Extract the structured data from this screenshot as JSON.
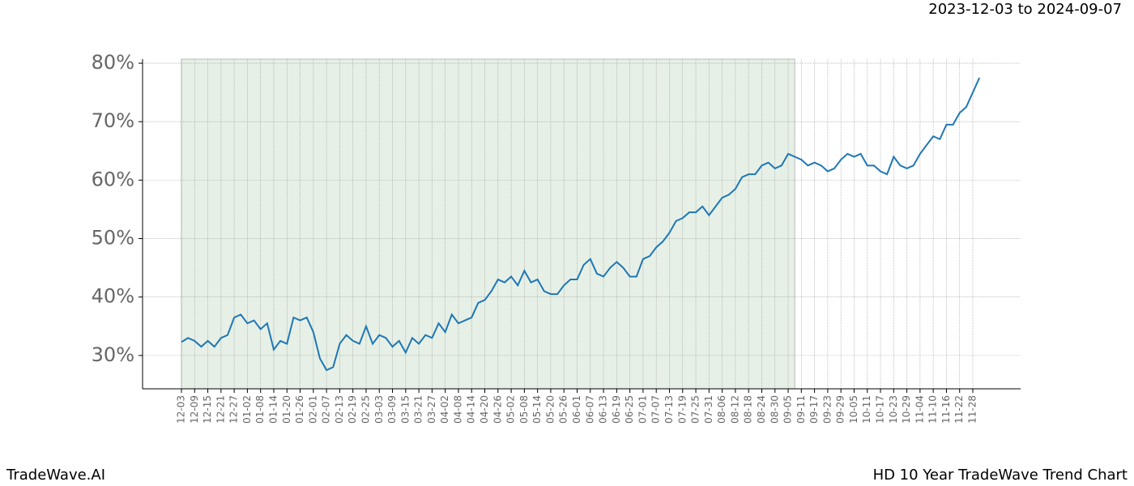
{
  "chart_data": {
    "type": "line",
    "title": "2023-12-03 to 2024-09-07",
    "footer_left": "TradeWave.AI",
    "footer_right": "HD 10 Year TradeWave Trend Chart",
    "categories": [
      "12-03",
      null,
      "12-09",
      null,
      "12-15",
      null,
      "12-21",
      null,
      "12-27",
      null,
      "01-02",
      null,
      "01-08",
      null,
      "01-14",
      null,
      "01-20",
      null,
      "01-26",
      null,
      "02-01",
      null,
      "02-07",
      null,
      "02-13",
      null,
      "02-19",
      null,
      "02-25",
      null,
      "03-03",
      null,
      "03-09",
      null,
      "03-15",
      null,
      "03-21",
      null,
      "03-27",
      null,
      "04-02",
      null,
      "04-08",
      null,
      "04-14",
      null,
      "04-20",
      null,
      "04-26",
      null,
      "05-02",
      null,
      "05-08",
      null,
      "05-14",
      null,
      "05-20",
      null,
      "05-26",
      null,
      "06-01",
      null,
      "06-07",
      null,
      "06-13",
      null,
      "06-19",
      null,
      "06-25",
      null,
      "07-01",
      null,
      "07-07",
      null,
      "07-13",
      null,
      "07-19",
      null,
      "07-25",
      null,
      "07-31",
      null,
      "08-06",
      null,
      "08-12",
      null,
      "08-18",
      null,
      "08-24",
      null,
      "08-30",
      null,
      "09-05",
      null,
      "09-11",
      null,
      "09-17",
      null,
      "09-23",
      null,
      "09-29",
      null,
      "10-05",
      null,
      "10-11",
      null,
      "10-17",
      null,
      "10-23",
      null,
      "10-29",
      null,
      "11-04",
      null,
      "11-10",
      null,
      "11-16",
      null,
      "11-22",
      null,
      "11-28",
      null
    ],
    "series": [
      {
        "name": "HD",
        "color": "#1f77b4",
        "values": [
          32.3,
          33,
          32.5,
          31.5,
          32.5,
          31.5,
          33,
          33.5,
          36.5,
          37,
          35.5,
          36,
          34.5,
          35.5,
          31,
          32.5,
          32,
          36.5,
          36,
          36.5,
          34,
          29.5,
          27.5,
          28,
          32,
          33.5,
          32.5,
          32,
          35,
          32,
          33.5,
          33,
          31.5,
          32.5,
          30.5,
          33,
          32,
          33.5,
          33,
          35.5,
          34,
          37,
          35.5,
          36,
          36.5,
          39,
          39.5,
          41,
          43,
          42.5,
          43.5,
          42,
          44.5,
          42.5,
          43,
          41,
          40.5,
          40.5,
          42,
          43,
          43,
          45.5,
          46.5,
          44,
          43.5,
          45,
          46,
          45,
          43.5,
          43.5,
          46.5,
          47,
          48.5,
          49.5,
          51,
          53,
          53.5,
          54.5,
          54.5,
          55.5,
          54,
          55.5,
          57,
          57.5,
          58.5,
          60.5,
          61,
          61,
          62.5,
          63,
          62,
          62.5,
          64.5,
          64,
          63.5,
          62.5,
          63,
          62.5,
          61.5,
          62,
          63.5,
          64.5,
          64,
          64.5,
          62.5,
          62.5,
          61.5,
          61,
          64,
          62.5,
          62,
          62.5,
          64.5,
          66,
          67.5,
          67,
          69.5,
          69.5,
          71.5,
          72.5,
          75,
          77.5
        ]
      }
    ],
    "shaded_range": [
      0,
      93
    ],
    "shade_color": "#e6f0e6",
    "ylim": [
      24.3,
      80.7
    ],
    "yticks": [
      {
        "value": 30,
        "label": "30%"
      },
      {
        "value": 40,
        "label": "40%"
      },
      {
        "value": 50,
        "label": "50%"
      },
      {
        "value": 60,
        "label": "60%"
      },
      {
        "value": 70,
        "label": "70%"
      },
      {
        "value": 80,
        "label": "80%"
      }
    ],
    "grid": true
  }
}
